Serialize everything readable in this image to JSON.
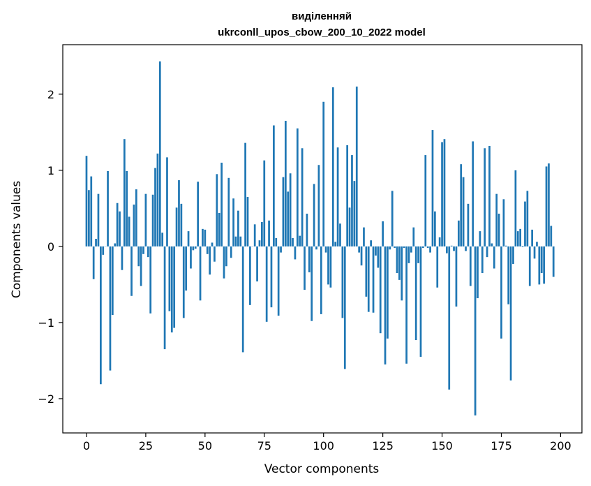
{
  "chart_data": {
    "type": "bar",
    "title_line1": "виділенняй",
    "title_line2": "ukrconll_upos_cbow_200_10_2022 model",
    "xlabel": "Vector components",
    "ylabel": "Components values",
    "xlim": [
      -10,
      209
    ],
    "ylim": [
      -2.45,
      2.65
    ],
    "xticks": [
      0,
      25,
      50,
      75,
      100,
      125,
      150,
      175,
      200
    ],
    "yticks": [
      -2,
      -1,
      0,
      1,
      2
    ],
    "xtick_labels": [
      "0",
      "25",
      "50",
      "75",
      "100",
      "125",
      "150",
      "175",
      "200"
    ],
    "ytick_labels": [
      "−2",
      "−1",
      "0",
      "1",
      "2"
    ],
    "grid": false,
    "color": "#1f77b4",
    "values": [
      1.19,
      0.74,
      0.92,
      -0.43,
      0.1,
      0.69,
      -1.81,
      -0.11,
      0.0,
      0.99,
      -1.63,
      -0.9,
      0.04,
      0.57,
      0.46,
      -0.31,
      1.41,
      0.99,
      0.39,
      -0.65,
      0.55,
      0.75,
      -0.26,
      -0.52,
      -0.1,
      0.69,
      -0.14,
      -0.88,
      0.68,
      1.03,
      1.22,
      2.43,
      0.18,
      -1.35,
      1.17,
      -0.85,
      -1.13,
      -1.07,
      0.51,
      0.87,
      0.56,
      -0.94,
      -0.58,
      0.2,
      -0.29,
      -0.05,
      -0.03,
      0.85,
      -0.71,
      0.23,
      0.22,
      -0.1,
      -0.37,
      0.05,
      -0.2,
      0.95,
      0.44,
      1.1,
      -0.42,
      -0.26,
      0.9,
      -0.15,
      0.63,
      0.13,
      0.47,
      0.13,
      -1.39,
      1.36,
      0.65,
      -0.77,
      0.0,
      0.29,
      -0.46,
      0.08,
      0.32,
      1.13,
      -0.99,
      0.34,
      -0.8,
      1.59,
      0.11,
      -0.91,
      -0.08,
      0.91,
      1.65,
      0.72,
      0.96,
      0.11,
      -0.17,
      1.55,
      0.14,
      1.29,
      -0.57,
      0.43,
      -0.34,
      -0.98,
      0.82,
      -0.04,
      1.07,
      -0.89,
      1.9,
      -0.08,
      -0.5,
      -0.54,
      2.09,
      0.06,
      1.3,
      0.3,
      -0.94,
      -1.61,
      1.33,
      0.51,
      1.2,
      0.86,
      2.1,
      -0.08,
      -0.25,
      0.25,
      -0.66,
      -0.86,
      0.08,
      -0.87,
      -0.12,
      -0.28,
      -1.14,
      0.33,
      -1.55,
      -1.21,
      -0.04,
      0.73,
      -0.02,
      -0.35,
      -0.44,
      -0.71,
      -0.02,
      -1.54,
      -0.22,
      -0.08,
      0.25,
      -1.23,
      -0.22,
      -1.45,
      -0.02,
      1.2,
      -0.02,
      -0.08,
      1.53,
      0.46,
      -0.54,
      0.12,
      1.37,
      1.41,
      -0.09,
      -1.88,
      0.01,
      -0.06,
      -0.79,
      0.34,
      1.08,
      0.91,
      -0.06,
      0.56,
      -0.52,
      1.38,
      -2.22,
      -0.68,
      0.2,
      -0.35,
      1.29,
      -0.14,
      1.32,
      0.04,
      -0.29,
      0.69,
      0.43,
      -1.21,
      0.62,
      0.01,
      -0.76,
      -1.76,
      -0.23,
      1.0,
      0.2,
      0.23,
      -0.01,
      0.59,
      0.73,
      -0.52,
      0.22,
      -0.16,
      0.06,
      -0.5,
      -0.35,
      -0.49,
      1.05,
      1.09,
      0.27,
      -0.4
    ]
  }
}
